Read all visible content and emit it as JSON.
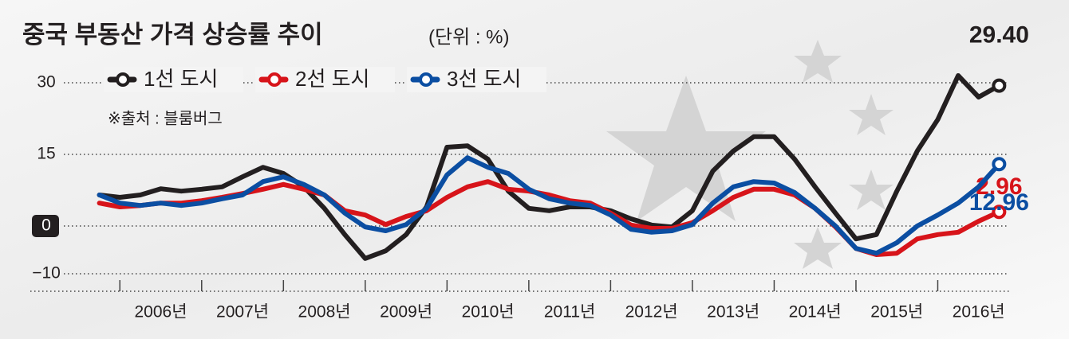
{
  "chart_data": {
    "type": "line",
    "title": "중국 부동산 가격 상승률 추이",
    "subtitle": "(단위 : %)",
    "source": "※출처 : 블룸버그",
    "x": [
      2005.75,
      2006,
      2006.25,
      2006.5,
      2006.75,
      2007,
      2007.25,
      2007.5,
      2007.75,
      2008,
      2008.25,
      2008.5,
      2008.75,
      2009,
      2009.25,
      2009.5,
      2009.75,
      2010,
      2010.25,
      2010.5,
      2010.75,
      2011,
      2011.25,
      2011.5,
      2011.75,
      2012,
      2012.25,
      2012.5,
      2012.75,
      2013,
      2013.25,
      2013.5,
      2013.75,
      2014,
      2014.25,
      2014.5,
      2014.75,
      2015,
      2015.25,
      2015.5,
      2015.75,
      2016,
      2016.25,
      2016.5,
      2016.75
    ],
    "xlim": [
      2005.5,
      2017
    ],
    "xticks": [
      {
        "value": 2006.5,
        "label": "2006년"
      },
      {
        "value": 2007.5,
        "label": "2007년"
      },
      {
        "value": 2008.5,
        "label": "2008년"
      },
      {
        "value": 2009.5,
        "label": "2009년"
      },
      {
        "value": 2010.5,
        "label": "2010년"
      },
      {
        "value": 2011.5,
        "label": "2011년"
      },
      {
        "value": 2012.5,
        "label": "2012년"
      },
      {
        "value": 2013.5,
        "label": "2013년"
      },
      {
        "value": 2014.5,
        "label": "2014년"
      },
      {
        "value": 2015.5,
        "label": "2015년"
      },
      {
        "value": 2016.5,
        "label": "2016년"
      }
    ],
    "ylim": [
      -13,
      33
    ],
    "yticks": [
      30,
      15,
      0,
      {
        "value": -10,
        "label": "−10"
      }
    ],
    "grid": true,
    "series": [
      {
        "name": "1선 도시",
        "color": "#231f20",
        "values": [
          6.5,
          6.0,
          6.5,
          7.8,
          7.3,
          7.7,
          8.2,
          10.3,
          12.3,
          11.0,
          8.2,
          3.7,
          -1.8,
          -6.8,
          -5.2,
          -1.8,
          4.0,
          16.5,
          16.8,
          14.0,
          7.3,
          3.7,
          3.2,
          4.0,
          4.0,
          3.2,
          1.5,
          0.2,
          -0.2,
          3.2,
          11.5,
          15.7,
          18.7,
          18.7,
          14.0,
          8.2,
          2.7,
          -2.7,
          -1.8,
          7.3,
          15.7,
          22.3,
          31.5,
          27.0,
          29.4
        ],
        "value_labels": [
          null,
          null,
          null,
          null,
          null,
          null,
          null,
          null,
          null,
          null,
          null,
          null,
          null,
          null,
          null,
          null,
          null,
          null,
          null,
          null,
          null,
          null,
          null,
          null,
          null,
          null,
          null,
          null,
          null,
          null,
          null,
          null,
          null,
          null,
          null,
          null,
          null,
          null,
          null,
          null,
          null,
          null,
          null,
          null,
          "29.40"
        ]
      },
      {
        "name": "2선 도시",
        "color": "#d7141a",
        "values": [
          4.8,
          4.0,
          4.3,
          4.8,
          4.8,
          5.3,
          6.0,
          6.8,
          7.7,
          8.7,
          7.7,
          6.5,
          3.2,
          2.3,
          0.3,
          2.0,
          3.2,
          6.0,
          8.2,
          9.3,
          7.7,
          7.3,
          6.5,
          5.3,
          4.8,
          2.7,
          0.2,
          -0.5,
          -0.5,
          0.7,
          3.2,
          6.0,
          7.7,
          7.7,
          6.5,
          3.7,
          -0.2,
          -4.7,
          -6.0,
          -5.7,
          -2.7,
          -1.8,
          -1.3,
          1.0,
          2.96
        ]
      },
      {
        "name": "3선 도시",
        "color": "#0b4ea2",
        "values": [
          6.5,
          4.8,
          4.3,
          4.8,
          4.3,
          4.8,
          5.7,
          6.5,
          9.3,
          10.3,
          8.7,
          6.5,
          2.7,
          -0.2,
          -1.0,
          0.3,
          3.7,
          10.7,
          14.3,
          12.3,
          11.0,
          7.7,
          5.7,
          4.8,
          4.3,
          2.3,
          -0.7,
          -1.3,
          -1.0,
          0.3,
          4.8,
          8.2,
          9.3,
          9.0,
          7.0,
          3.7,
          0.0,
          -4.7,
          -5.7,
          -3.5,
          0.0,
          2.3,
          4.8,
          8.2,
          12.96
        ]
      }
    ]
  }
}
